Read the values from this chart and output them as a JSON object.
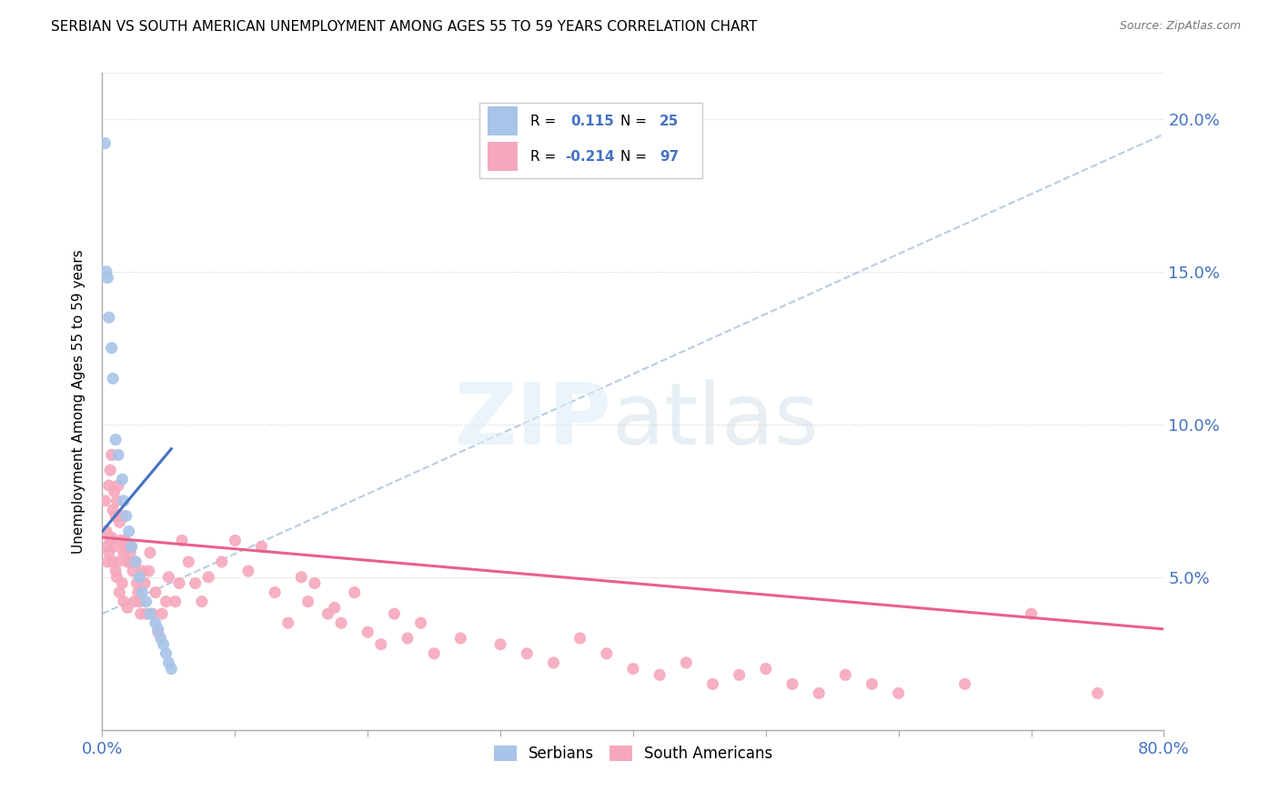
{
  "title": "SERBIAN VS SOUTH AMERICAN UNEMPLOYMENT AMONG AGES 55 TO 59 YEARS CORRELATION CHART",
  "source": "Source: ZipAtlas.com",
  "ylabel": "Unemployment Among Ages 55 to 59 years",
  "xlim": [
    0.0,
    0.8
  ],
  "ylim": [
    0.0,
    0.215
  ],
  "yticks": [
    0.05,
    0.1,
    0.15,
    0.2
  ],
  "ytick_labels": [
    "5.0%",
    "10.0%",
    "15.0%",
    "20.0%"
  ],
  "xticks": [
    0.0,
    0.1,
    0.2,
    0.3,
    0.4,
    0.5,
    0.6,
    0.7,
    0.8
  ],
  "serbian_color": "#a8c4e8",
  "south_american_color": "#f5a8bc",
  "serbian_line_color": "#4472c4",
  "south_american_line_color": "#e8608c",
  "dashed_line_color": "#b8cce4",
  "background_color": "#ffffff",
  "serbian_x": [
    0.002,
    0.003,
    0.004,
    0.005,
    0.007,
    0.008,
    0.01,
    0.012,
    0.015,
    0.016,
    0.018,
    0.02,
    0.022,
    0.025,
    0.028,
    0.03,
    0.033,
    0.036,
    0.04,
    0.042,
    0.044,
    0.046,
    0.048,
    0.05,
    0.052
  ],
  "serbian_y": [
    0.192,
    0.15,
    0.148,
    0.135,
    0.125,
    0.115,
    0.095,
    0.09,
    0.082,
    0.075,
    0.07,
    0.065,
    0.06,
    0.055,
    0.05,
    0.045,
    0.042,
    0.038,
    0.035,
    0.033,
    0.03,
    0.028,
    0.025,
    0.022,
    0.02
  ],
  "sa_x": [
    0.002,
    0.003,
    0.004,
    0.004,
    0.005,
    0.005,
    0.006,
    0.006,
    0.007,
    0.007,
    0.008,
    0.008,
    0.009,
    0.009,
    0.01,
    0.01,
    0.011,
    0.011,
    0.012,
    0.012,
    0.013,
    0.013,
    0.014,
    0.015,
    0.015,
    0.016,
    0.016,
    0.017,
    0.018,
    0.019,
    0.019,
    0.02,
    0.021,
    0.022,
    0.023,
    0.024,
    0.025,
    0.026,
    0.027,
    0.028,
    0.029,
    0.03,
    0.032,
    0.033,
    0.035,
    0.036,
    0.038,
    0.04,
    0.042,
    0.045,
    0.048,
    0.05,
    0.055,
    0.058,
    0.06,
    0.065,
    0.07,
    0.075,
    0.08,
    0.09,
    0.1,
    0.11,
    0.12,
    0.13,
    0.14,
    0.15,
    0.155,
    0.16,
    0.17,
    0.175,
    0.18,
    0.19,
    0.2,
    0.21,
    0.22,
    0.23,
    0.24,
    0.25,
    0.27,
    0.3,
    0.32,
    0.34,
    0.36,
    0.38,
    0.4,
    0.42,
    0.44,
    0.46,
    0.48,
    0.5,
    0.52,
    0.54,
    0.56,
    0.58,
    0.6,
    0.65,
    0.7,
    0.75
  ],
  "sa_y": [
    0.075,
    0.065,
    0.06,
    0.055,
    0.08,
    0.058,
    0.085,
    0.062,
    0.09,
    0.063,
    0.072,
    0.055,
    0.078,
    0.06,
    0.07,
    0.052,
    0.075,
    0.05,
    0.08,
    0.055,
    0.068,
    0.045,
    0.062,
    0.07,
    0.048,
    0.058,
    0.042,
    0.062,
    0.06,
    0.055,
    0.04,
    0.055,
    0.058,
    0.06,
    0.052,
    0.042,
    0.055,
    0.048,
    0.045,
    0.042,
    0.038,
    0.052,
    0.048,
    0.038,
    0.052,
    0.058,
    0.038,
    0.045,
    0.032,
    0.038,
    0.042,
    0.05,
    0.042,
    0.048,
    0.062,
    0.055,
    0.048,
    0.042,
    0.05,
    0.055,
    0.062,
    0.052,
    0.06,
    0.045,
    0.035,
    0.05,
    0.042,
    0.048,
    0.038,
    0.04,
    0.035,
    0.045,
    0.032,
    0.028,
    0.038,
    0.03,
    0.035,
    0.025,
    0.03,
    0.028,
    0.025,
    0.022,
    0.03,
    0.025,
    0.02,
    0.018,
    0.022,
    0.015,
    0.018,
    0.02,
    0.015,
    0.012,
    0.018,
    0.015,
    0.012,
    0.015,
    0.038,
    0.012
  ],
  "serb_line_x": [
    0.0,
    0.052
  ],
  "serb_line_y": [
    0.065,
    0.092
  ],
  "sa_line_x": [
    0.0,
    0.8
  ],
  "sa_line_y": [
    0.063,
    0.033
  ],
  "dash_line_x": [
    0.0,
    0.8
  ],
  "dash_line_y": [
    0.038,
    0.195
  ]
}
